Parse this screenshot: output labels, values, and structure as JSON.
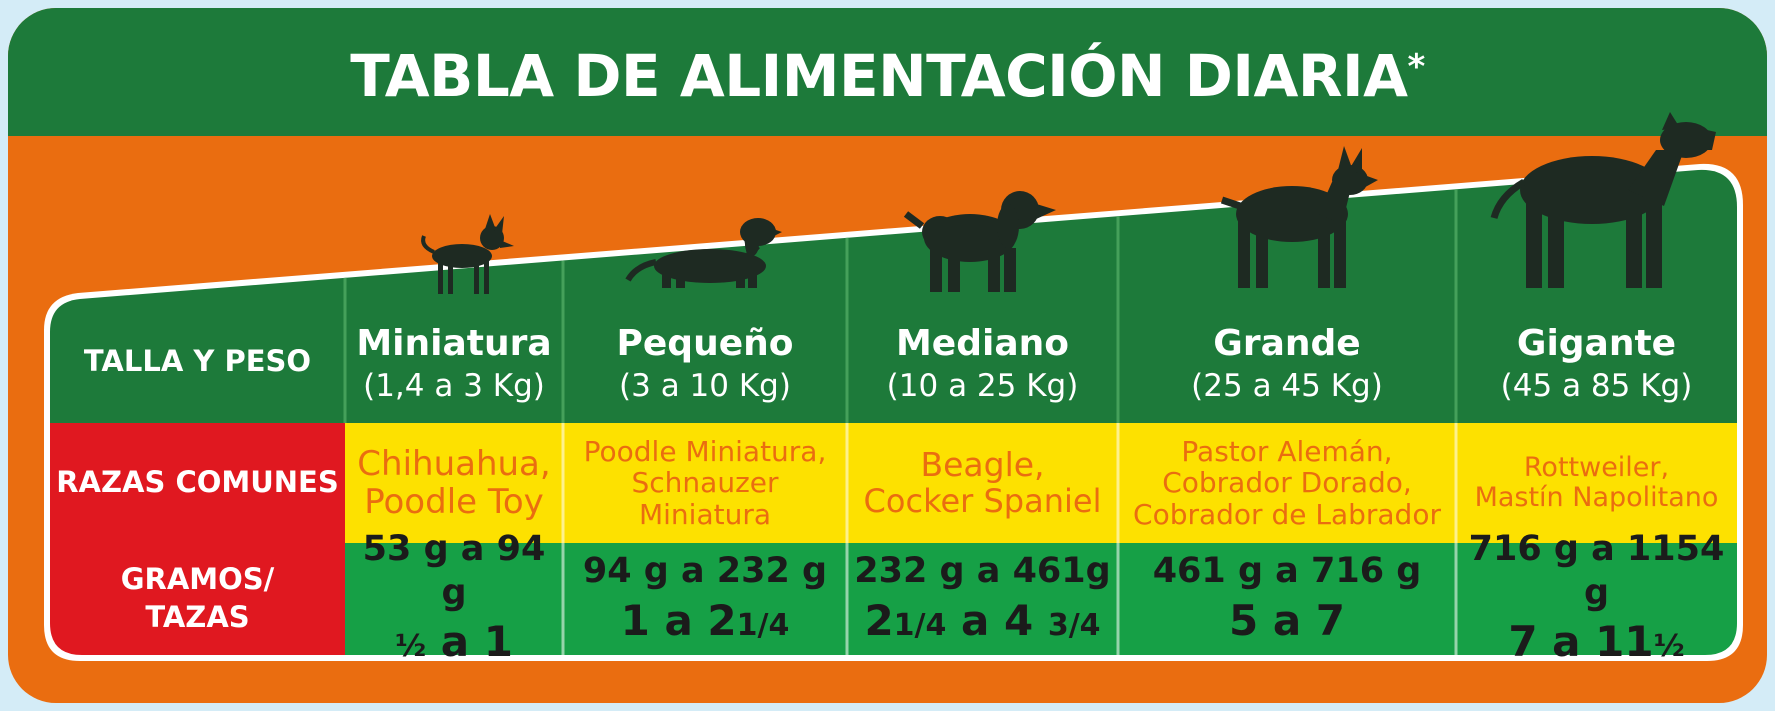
{
  "title": "TABLA DE ALIMENTACIÓN DIARIA",
  "title_mark": "*",
  "colors": {
    "green_dark": "#1d7a3a",
    "green_light": "#16a046",
    "orange": "#ea6d10",
    "yellow": "#fde100",
    "red": "#e01820",
    "silhouette": "#1e2a22"
  },
  "row_labels": {
    "size": "TALLA Y PESO",
    "breeds": "RAZAS COMUNES",
    "amount_line1": "GRAMOS/",
    "amount_line2": "TAZAS"
  },
  "columns": [
    {
      "name": "Miniatura",
      "range": "(1,4 a 3 Kg)",
      "breeds": [
        "Chihuahua,",
        "Poodle Toy"
      ],
      "grams": "53 g a 94 g",
      "cups": [
        [
          "½",
          "frac"
        ],
        [
          " a 1",
          ""
        ]
      ],
      "dog_icon": "chihuahua-icon"
    },
    {
      "name": "Pequeño",
      "range": "(3 a 10 Kg)",
      "breeds": [
        "Poodle Miniatura,",
        "Schnauzer",
        "Miniatura"
      ],
      "grams": "94 g a 232 g",
      "cups": [
        [
          "1 a 2",
          ""
        ],
        [
          "1/4",
          "frac"
        ]
      ],
      "dog_icon": "dachshund-icon"
    },
    {
      "name": "Mediano",
      "range": "(10 a 25 Kg)",
      "breeds": [
        "Beagle,",
        "Cocker Spaniel"
      ],
      "grams": "232 g a 461g",
      "cups": [
        [
          "2",
          ""
        ],
        [
          "1/4",
          "frac"
        ],
        [
          " a 4 ",
          ""
        ],
        [
          "3/4",
          "frac"
        ]
      ],
      "dog_icon": "spaniel-icon"
    },
    {
      "name": "Grande",
      "range": "(25 a 45 Kg)",
      "breeds": [
        "Pastor Alemán,",
        "Cobrador Dorado,",
        "Cobrador de Labrador"
      ],
      "grams": "461 g a 716 g",
      "cups": [
        [
          "5 a 7",
          ""
        ]
      ],
      "dog_icon": "doberman-icon"
    },
    {
      "name": "Gigante",
      "range": "(45 a 85 Kg)",
      "breeds": [
        "Rottweiler,",
        "Mastín Napolitano"
      ],
      "grams": "716 g a 1154 g",
      "cups": [
        [
          "7 a 11",
          ""
        ],
        [
          "½",
          "frac"
        ]
      ],
      "dog_icon": "great-dane-icon"
    }
  ]
}
